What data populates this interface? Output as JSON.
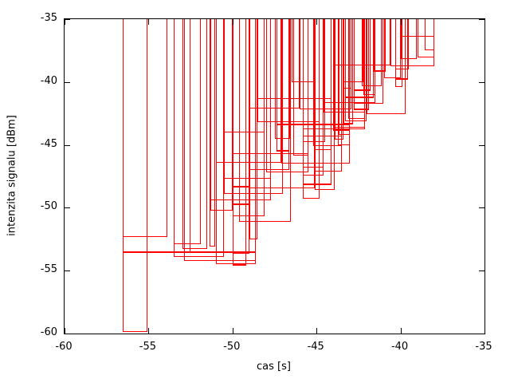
{
  "figure": {
    "background": "#ffffff",
    "frame_color": "#000000",
    "box_color": "#ff0000"
  },
  "chart_data": {
    "type": "bar",
    "style": "gnuplot-boxes-outline",
    "title": "",
    "xlabel": "cas [s]",
    "ylabel": "intenzita signalu [dBm]",
    "xlim": [
      -60,
      -35
    ],
    "ylim": [
      -60,
      -35
    ],
    "xticks": [
      -60,
      -55,
      -50,
      -45,
      -40,
      -35
    ],
    "yticks": [
      -60,
      -55,
      -50,
      -45,
      -40,
      -35
    ],
    "grid": false,
    "legend": null,
    "boxes_note": "each box = [t_start_s, t_end_s, signal_dBm, optional_linewidth]; boxes drawn from dBm value up to top of plot (-35), outline only",
    "boxes": [
      [
        -56.55,
        -55.05,
        -59.9
      ],
      [
        -56.55,
        -53.9,
        -52.3
      ],
      [
        -56.55,
        -52.5,
        -53.6,
        2
      ],
      [
        -52.55,
        -48.6,
        -53.6,
        2
      ],
      [
        -53.5,
        -51.9,
        -52.9
      ],
      [
        -53.0,
        -51.5,
        -53.25
      ],
      [
        -53.5,
        -50.5,
        -53.9
      ],
      [
        -52.9,
        -48.6,
        -54.25
      ],
      [
        -51.0,
        -48.6,
        -54.45
      ],
      [
        -51.35,
        -51.05,
        -53.1
      ],
      [
        -50.0,
        -49.2,
        -54.6,
        2
      ],
      [
        -50.0,
        -49.0,
        -53.65
      ],
      [
        -49.0,
        -48.5,
        -52.5
      ],
      [
        -51.3,
        -50.0,
        -50.2
      ],
      [
        -51.3,
        -47.7,
        -49.4
      ],
      [
        -50.5,
        -47.0,
        -48.9
      ],
      [
        -50.0,
        -49.0,
        -49.8,
        2
      ],
      [
        -50.0,
        -48.1,
        -50.7
      ],
      [
        -49.6,
        -46.5,
        -51.1
      ],
      [
        -50.0,
        -49.0,
        -48.4,
        2
      ],
      [
        -49.0,
        -45.1,
        -48.45
      ],
      [
        -50.5,
        -47.7,
        -47.7
      ],
      [
        -49.0,
        -46.6,
        -47.0
      ],
      [
        -48.0,
        -45.5,
        -47.2
      ],
      [
        -51.0,
        -47.1,
        -46.4
      ],
      [
        -47.1,
        -43.0,
        -46.45
      ],
      [
        -50.0,
        -45.5,
        -45.7
      ],
      [
        -47.4,
        -46.6,
        -45.55,
        2
      ],
      [
        -46.4,
        -45.5,
        -45.85
      ],
      [
        -47.5,
        -46.6,
        -44.5
      ],
      [
        -46.5,
        -45.1,
        -40.0
      ],
      [
        -48.5,
        -44.1,
        -41.35
      ],
      [
        -44.6,
        -41.5,
        -41.65
      ],
      [
        -49.0,
        -46.0,
        -42.1
      ],
      [
        -46.0,
        -42.9,
        -42.15
      ],
      [
        -44.6,
        -42.1,
        -42.45
      ],
      [
        -48.5,
        -44.8,
        -43.2
      ],
      [
        -47.4,
        -43.0,
        -43.45,
        2
      ],
      [
        -45.8,
        -42.1,
        -43.75
      ],
      [
        -44.0,
        -43.0,
        -43.9,
        2
      ],
      [
        -50.5,
        -48.1,
        -44.0
      ],
      [
        -45.8,
        -43.5,
        -44.35
      ],
      [
        -45.8,
        -44.5,
        -44.8
      ],
      [
        -45.2,
        -43.5,
        -45.1
      ],
      [
        -45.1,
        -44.1,
        -45.4
      ],
      [
        -45.8,
        -44.6,
        -46.8
      ],
      [
        -45.1,
        -43.5,
        -47.1
      ],
      [
        -45.8,
        -44.6,
        -47.45
      ],
      [
        -45.8,
        -44.1,
        -48.2,
        2
      ],
      [
        -45.1,
        -43.9,
        -48.6
      ],
      [
        -45.8,
        -44.8,
        -49.3
      ],
      [
        -40.0,
        -38.0,
        -36.4
      ],
      [
        -38.55,
        -38.0,
        -37.45
      ],
      [
        -39.0,
        -38.0,
        -38.05
      ],
      [
        -40.0,
        -39.05,
        -38.2
      ],
      [
        -43.9,
        -40.6,
        -38.7
      ],
      [
        -40.6,
        -38.0,
        -38.72
      ],
      [
        -41.6,
        -40.9,
        -39.2,
        2
      ],
      [
        -40.3,
        -39.5,
        -39.0
      ],
      [
        -41.0,
        -40.0,
        -39.7
      ],
      [
        -40.3,
        -39.55,
        -39.8,
        2
      ],
      [
        -43.4,
        -42.2,
        -40.0
      ],
      [
        -42.3,
        -41.1,
        -40.3
      ],
      [
        -43.4,
        -42.9,
        -40.5
      ],
      [
        -40.3,
        -39.9,
        -40.4
      ],
      [
        -42.8,
        -41.8,
        -40.7,
        2
      ],
      [
        -42.2,
        -41.5,
        -41.0
      ],
      [
        -42.8,
        -41.0,
        -41.7
      ],
      [
        -43.3,
        -41.6,
        -41.3,
        2
      ],
      [
        -42.0,
        -39.7,
        -42.55
      ],
      [
        -43.1,
        -42.1,
        -42.9
      ],
      [
        -42.8,
        -41.9,
        -42.2,
        2
      ],
      [
        -43.3,
        -42.0,
        -43.1
      ],
      [
        -43.4,
        -42.8,
        -43.35,
        2
      ],
      [
        -43.9,
        -42.1,
        -43.65
      ],
      [
        -43.7,
        -43.0,
        -44.2
      ],
      [
        -43.9,
        -43.4,
        -44.6
      ],
      [
        -43.75,
        -43.0,
        -45.0
      ]
    ]
  }
}
